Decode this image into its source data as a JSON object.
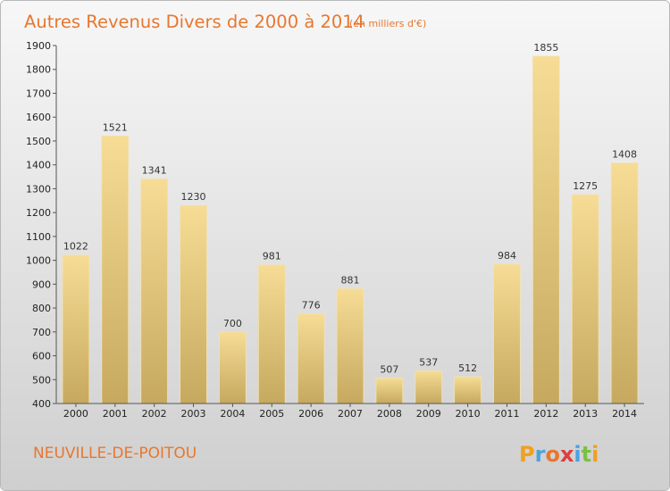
{
  "chart_data": {
    "type": "bar",
    "title": "Autres Revenus Divers de 2000 à 2014",
    "subtitle": "(en milliers d'€)",
    "categories": [
      "2000",
      "2001",
      "2002",
      "2003",
      "2004",
      "2005",
      "2006",
      "2007",
      "2008",
      "2009",
      "2010",
      "2011",
      "2012",
      "2013",
      "2014"
    ],
    "values": [
      1022,
      1521,
      1341,
      1230,
      700,
      981,
      776,
      881,
      507,
      537,
      512,
      984,
      1855,
      1275,
      1408
    ],
    "ylim": [
      400,
      1900
    ],
    "yticks": [
      400,
      500,
      600,
      700,
      800,
      900,
      1000,
      1100,
      1200,
      1300,
      1400,
      1500,
      1600,
      1700,
      1800,
      1900
    ],
    "xlabel": "",
    "ylabel": "",
    "grid": false,
    "bar_color": "#e3c583"
  },
  "footer": {
    "place": "NEUVILLE-DE-POITOU",
    "logo": {
      "letters": [
        "P",
        "r",
        "o",
        "x",
        "i",
        "t",
        "i"
      ],
      "colors": [
        "#f0a020",
        "#4aa3df",
        "#e8772e",
        "#e03c3c",
        "#4aa3df",
        "#7ac143",
        "#f0a020"
      ]
    }
  }
}
